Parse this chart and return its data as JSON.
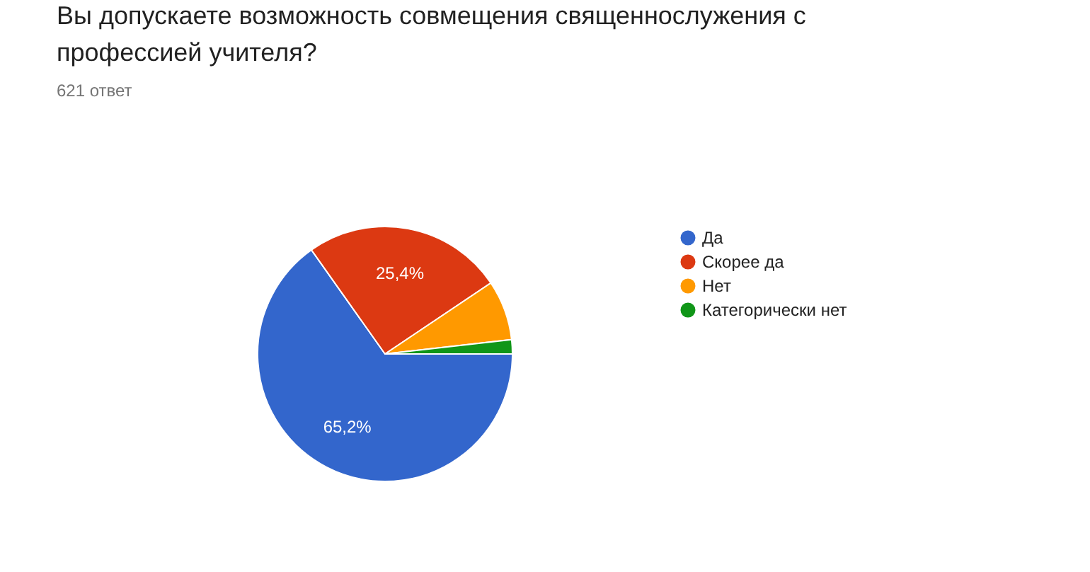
{
  "chart_data": {
    "type": "pie",
    "title": "Вы допускаете возможность совмещения священнослужения с профессией учителя?",
    "subtitle": "621 ответ",
    "categories": [
      "Да",
      "Скорее да",
      "Нет",
      "Категорически нет"
    ],
    "values": [
      65.2,
      25.4,
      7.6,
      1.8
    ],
    "colors": [
      "#3366cc",
      "#dc3912",
      "#ff9900",
      "#109618"
    ],
    "value_labels": [
      "65,2%",
      "25,4%",
      null,
      null
    ],
    "legend": "right"
  }
}
